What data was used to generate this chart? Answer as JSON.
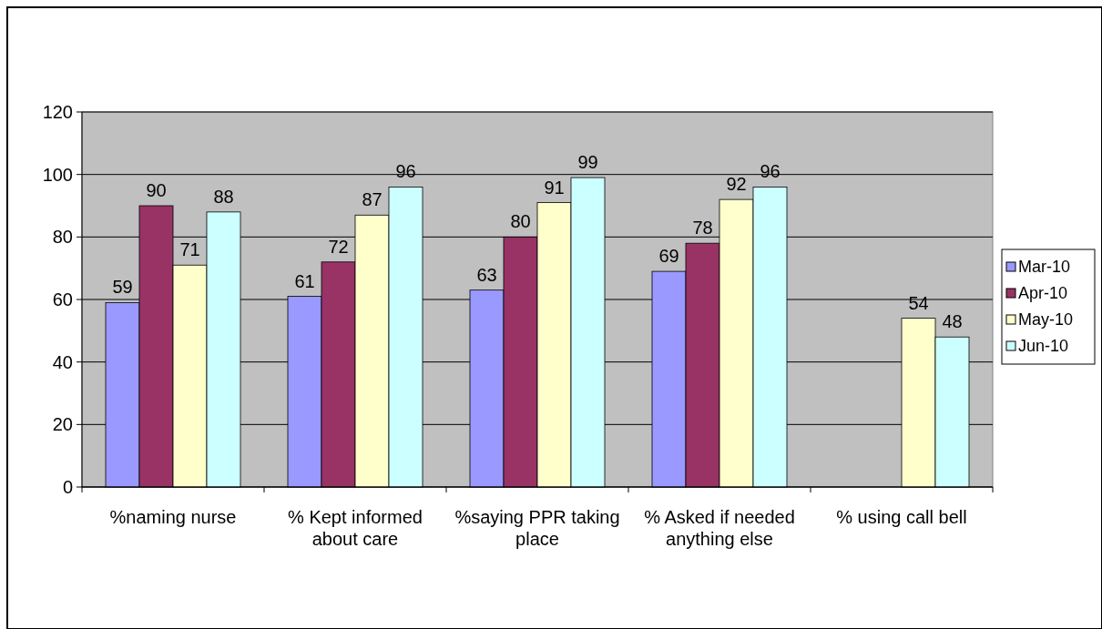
{
  "chart_data": {
    "type": "bar",
    "categories": [
      "%naming nurse",
      "% Kept informed about care",
      "%saying PPR taking place",
      "% Asked if needed anything else",
      "% using call bell"
    ],
    "series": [
      {
        "name": "Mar-10",
        "color": "#9999ff",
        "values": [
          59,
          61,
          63,
          69,
          null
        ]
      },
      {
        "name": "Apr-10",
        "color": "#993366",
        "values": [
          90,
          72,
          80,
          78,
          null
        ]
      },
      {
        "name": "May-10",
        "color": "#ffffcc",
        "values": [
          71,
          87,
          91,
          92,
          54
        ]
      },
      {
        "name": "Jun-10",
        "color": "#ccffff",
        "values": [
          88,
          96,
          99,
          96,
          48
        ]
      }
    ],
    "ylim": [
      0,
      120
    ],
    "yticks": [
      0,
      20,
      40,
      60,
      80,
      100,
      120
    ],
    "grid": "y",
    "legend": "right",
    "data_labels": true
  }
}
